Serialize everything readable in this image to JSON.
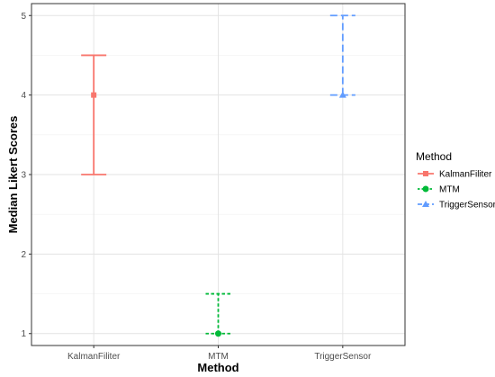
{
  "chart_data": {
    "type": "errorbar",
    "xlabel": "Method",
    "ylabel": "Median Likert Scores",
    "categories": [
      "KalmanFiliter",
      "MTM",
      "TriggerSensor"
    ],
    "ylim": [
      0.85,
      5.15
    ],
    "yticks": [
      1,
      2,
      3,
      4,
      5
    ],
    "grid": true,
    "legend": {
      "title": "Method",
      "position": "right"
    },
    "series": [
      {
        "name": "KalmanFiliter",
        "x": "KalmanFiliter",
        "median": 4,
        "lower": 3,
        "upper": 4.5,
        "color": "#F8766D",
        "marker": "square",
        "linestyle": "solid"
      },
      {
        "name": "MTM",
        "x": "MTM",
        "median": 1,
        "lower": 1,
        "upper": 1.5,
        "color": "#00BA38",
        "marker": "circle",
        "linestyle": "dotted"
      },
      {
        "name": "TriggerSensor",
        "x": "TriggerSensor",
        "median": 4,
        "lower": 4,
        "upper": 5,
        "color": "#619CFF",
        "marker": "triangle",
        "linestyle": "dashed"
      }
    ]
  }
}
